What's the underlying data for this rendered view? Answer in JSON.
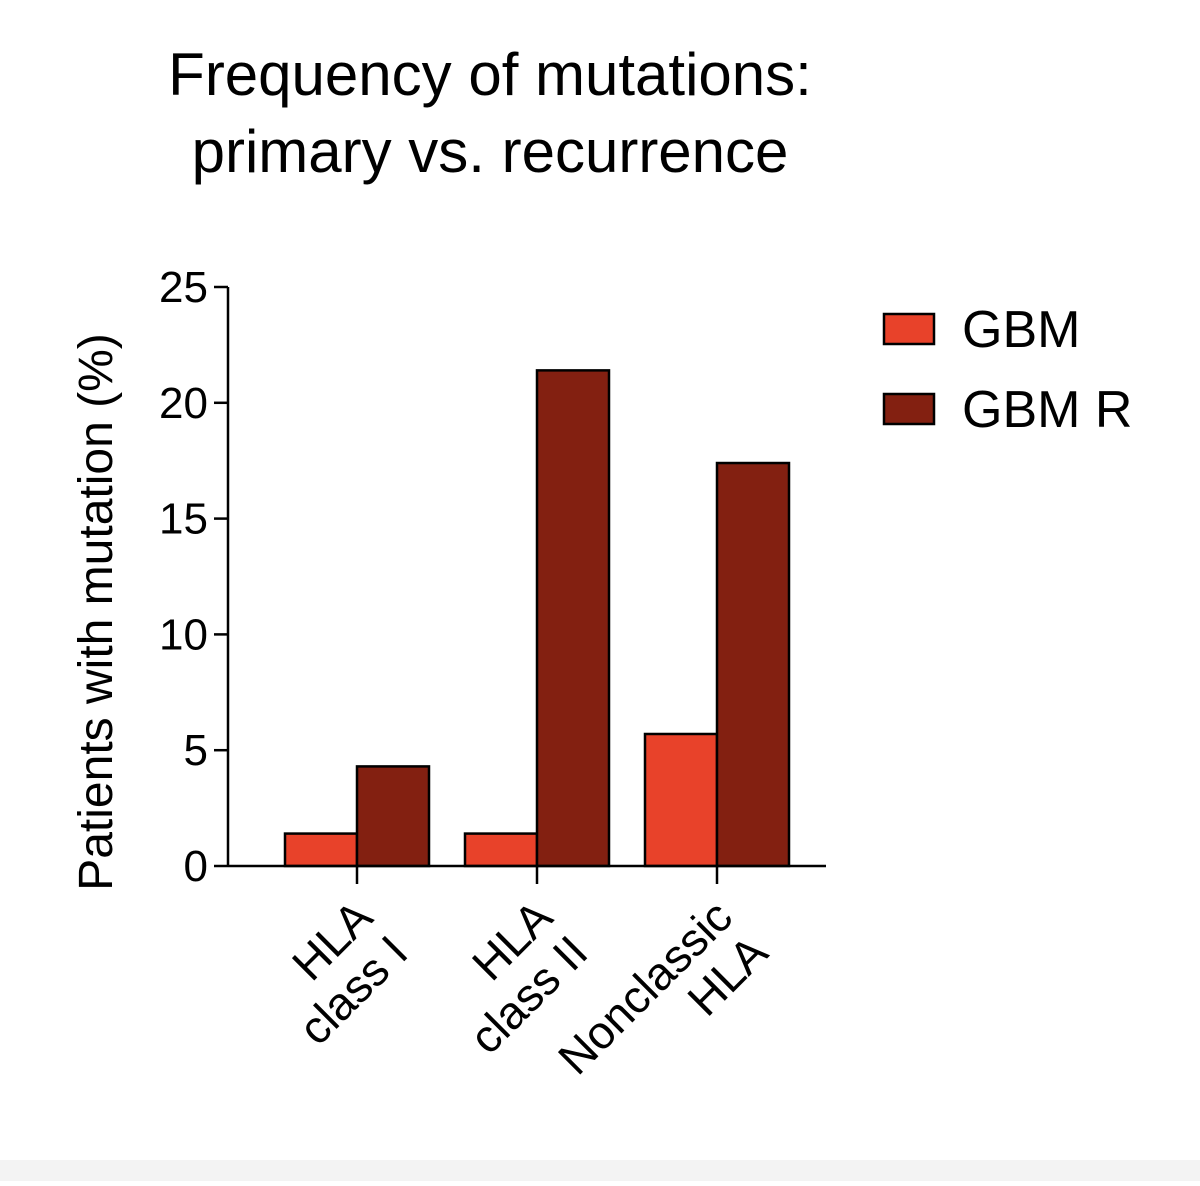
{
  "chart_data": {
    "type": "bar",
    "title_lines": [
      "Frequency of mutations:",
      "primary vs. recurrence"
    ],
    "xlabel": "",
    "ylabel": "Patients with mutation (%)",
    "ylim": [
      0,
      25
    ],
    "yticks": [
      0,
      5,
      10,
      15,
      20,
      25
    ],
    "ytick_labels": [
      "0",
      "5",
      "10",
      "15",
      "20",
      "25"
    ],
    "grid": false,
    "legend_position": "right",
    "categories": [
      {
        "lines": [
          "HLA",
          "class I"
        ]
      },
      {
        "lines": [
          "HLA",
          "class II"
        ]
      },
      {
        "lines": [
          "Nonclassic",
          "HLA"
        ]
      }
    ],
    "series": [
      {
        "name": "GBM",
        "color": "#e8422a",
        "values": [
          1.4,
          1.4,
          5.7
        ]
      },
      {
        "name": "GBM R",
        "color": "#832011",
        "values": [
          4.3,
          21.4,
          17.4
        ]
      }
    ]
  }
}
